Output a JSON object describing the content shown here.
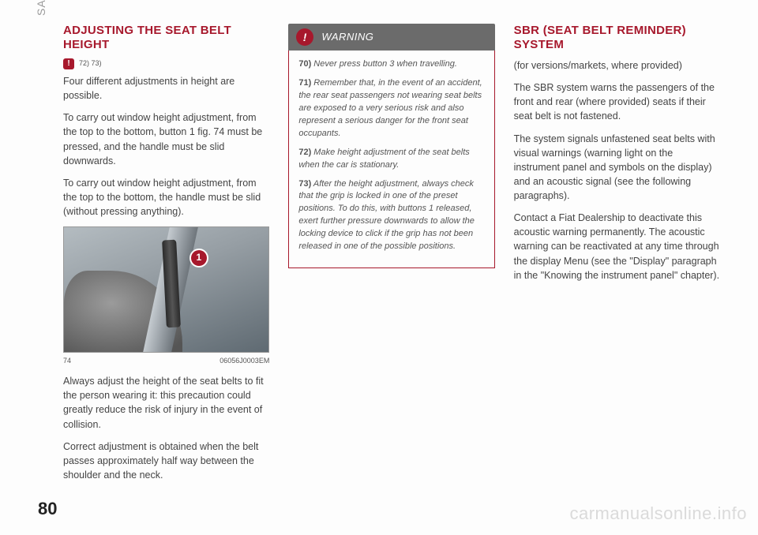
{
  "tab": "SAFETY",
  "page_number": "80",
  "watermark": "carmanualsonline.info",
  "col1": {
    "heading": "ADJUSTING THE SEAT BELT HEIGHT",
    "warn_glyph": "!",
    "refs": "72) 73)",
    "p1": "Four different adjustments in height are possible.",
    "p2": "To carry out window height adjustment, from the top to the bottom, button 1 fig. 74 must be pressed, and the handle must be slid downwards.",
    "p3": "To carry out window height adjustment, from the top to the bottom, the handle must be slid (without pressing anything).",
    "fig_callout": "1",
    "fig_num": "74",
    "fig_code": "06056J0003EM",
    "p4": "Always adjust the height of the seat belts to fit the person wearing it: this precaution could greatly reduce the risk of injury in the event of collision.",
    "p5": "Correct adjustment is obtained when the belt passes approximately half way between the shoulder and the neck."
  },
  "col2": {
    "warn_title": "WARNING",
    "warn_glyph": "!",
    "n70": "70)",
    "t70": " Never press button 3 when travelling.",
    "n71": "71)",
    "t71": " Remember that, in the event of an accident, the rear seat passengers not wearing seat belts are exposed to a very serious risk and also represent a serious danger for the front seat occupants.",
    "n72": "72)",
    "t72": " Make height adjustment of the seat belts when the car is stationary.",
    "n73": "73)",
    "t73": " After the height adjustment, always check that the grip is locked in one of the preset positions. To do this, with buttons 1 released, exert further pressure downwards to allow the locking device to click if the grip has not been released in one of the possible positions."
  },
  "col3": {
    "heading": "SBR (SEAT BELT REMINDER) SYSTEM",
    "p1": "(for versions/markets, where provided)",
    "p2": "The SBR system warns the passengers of the front and rear (where provided) seats if their seat belt is not fastened.",
    "p3": "The system signals unfastened seat belts with visual warnings (warning light on the instrument panel and symbols on the display) and an acoustic signal (see the following paragraphs).",
    "p4": "Contact a Fiat Dealership to deactivate this acoustic warning permanently. The acoustic warning can be reactivated at any time through the display Menu (see the \"Display\" paragraph in the \"Knowing the instrument panel\" chapter)."
  }
}
